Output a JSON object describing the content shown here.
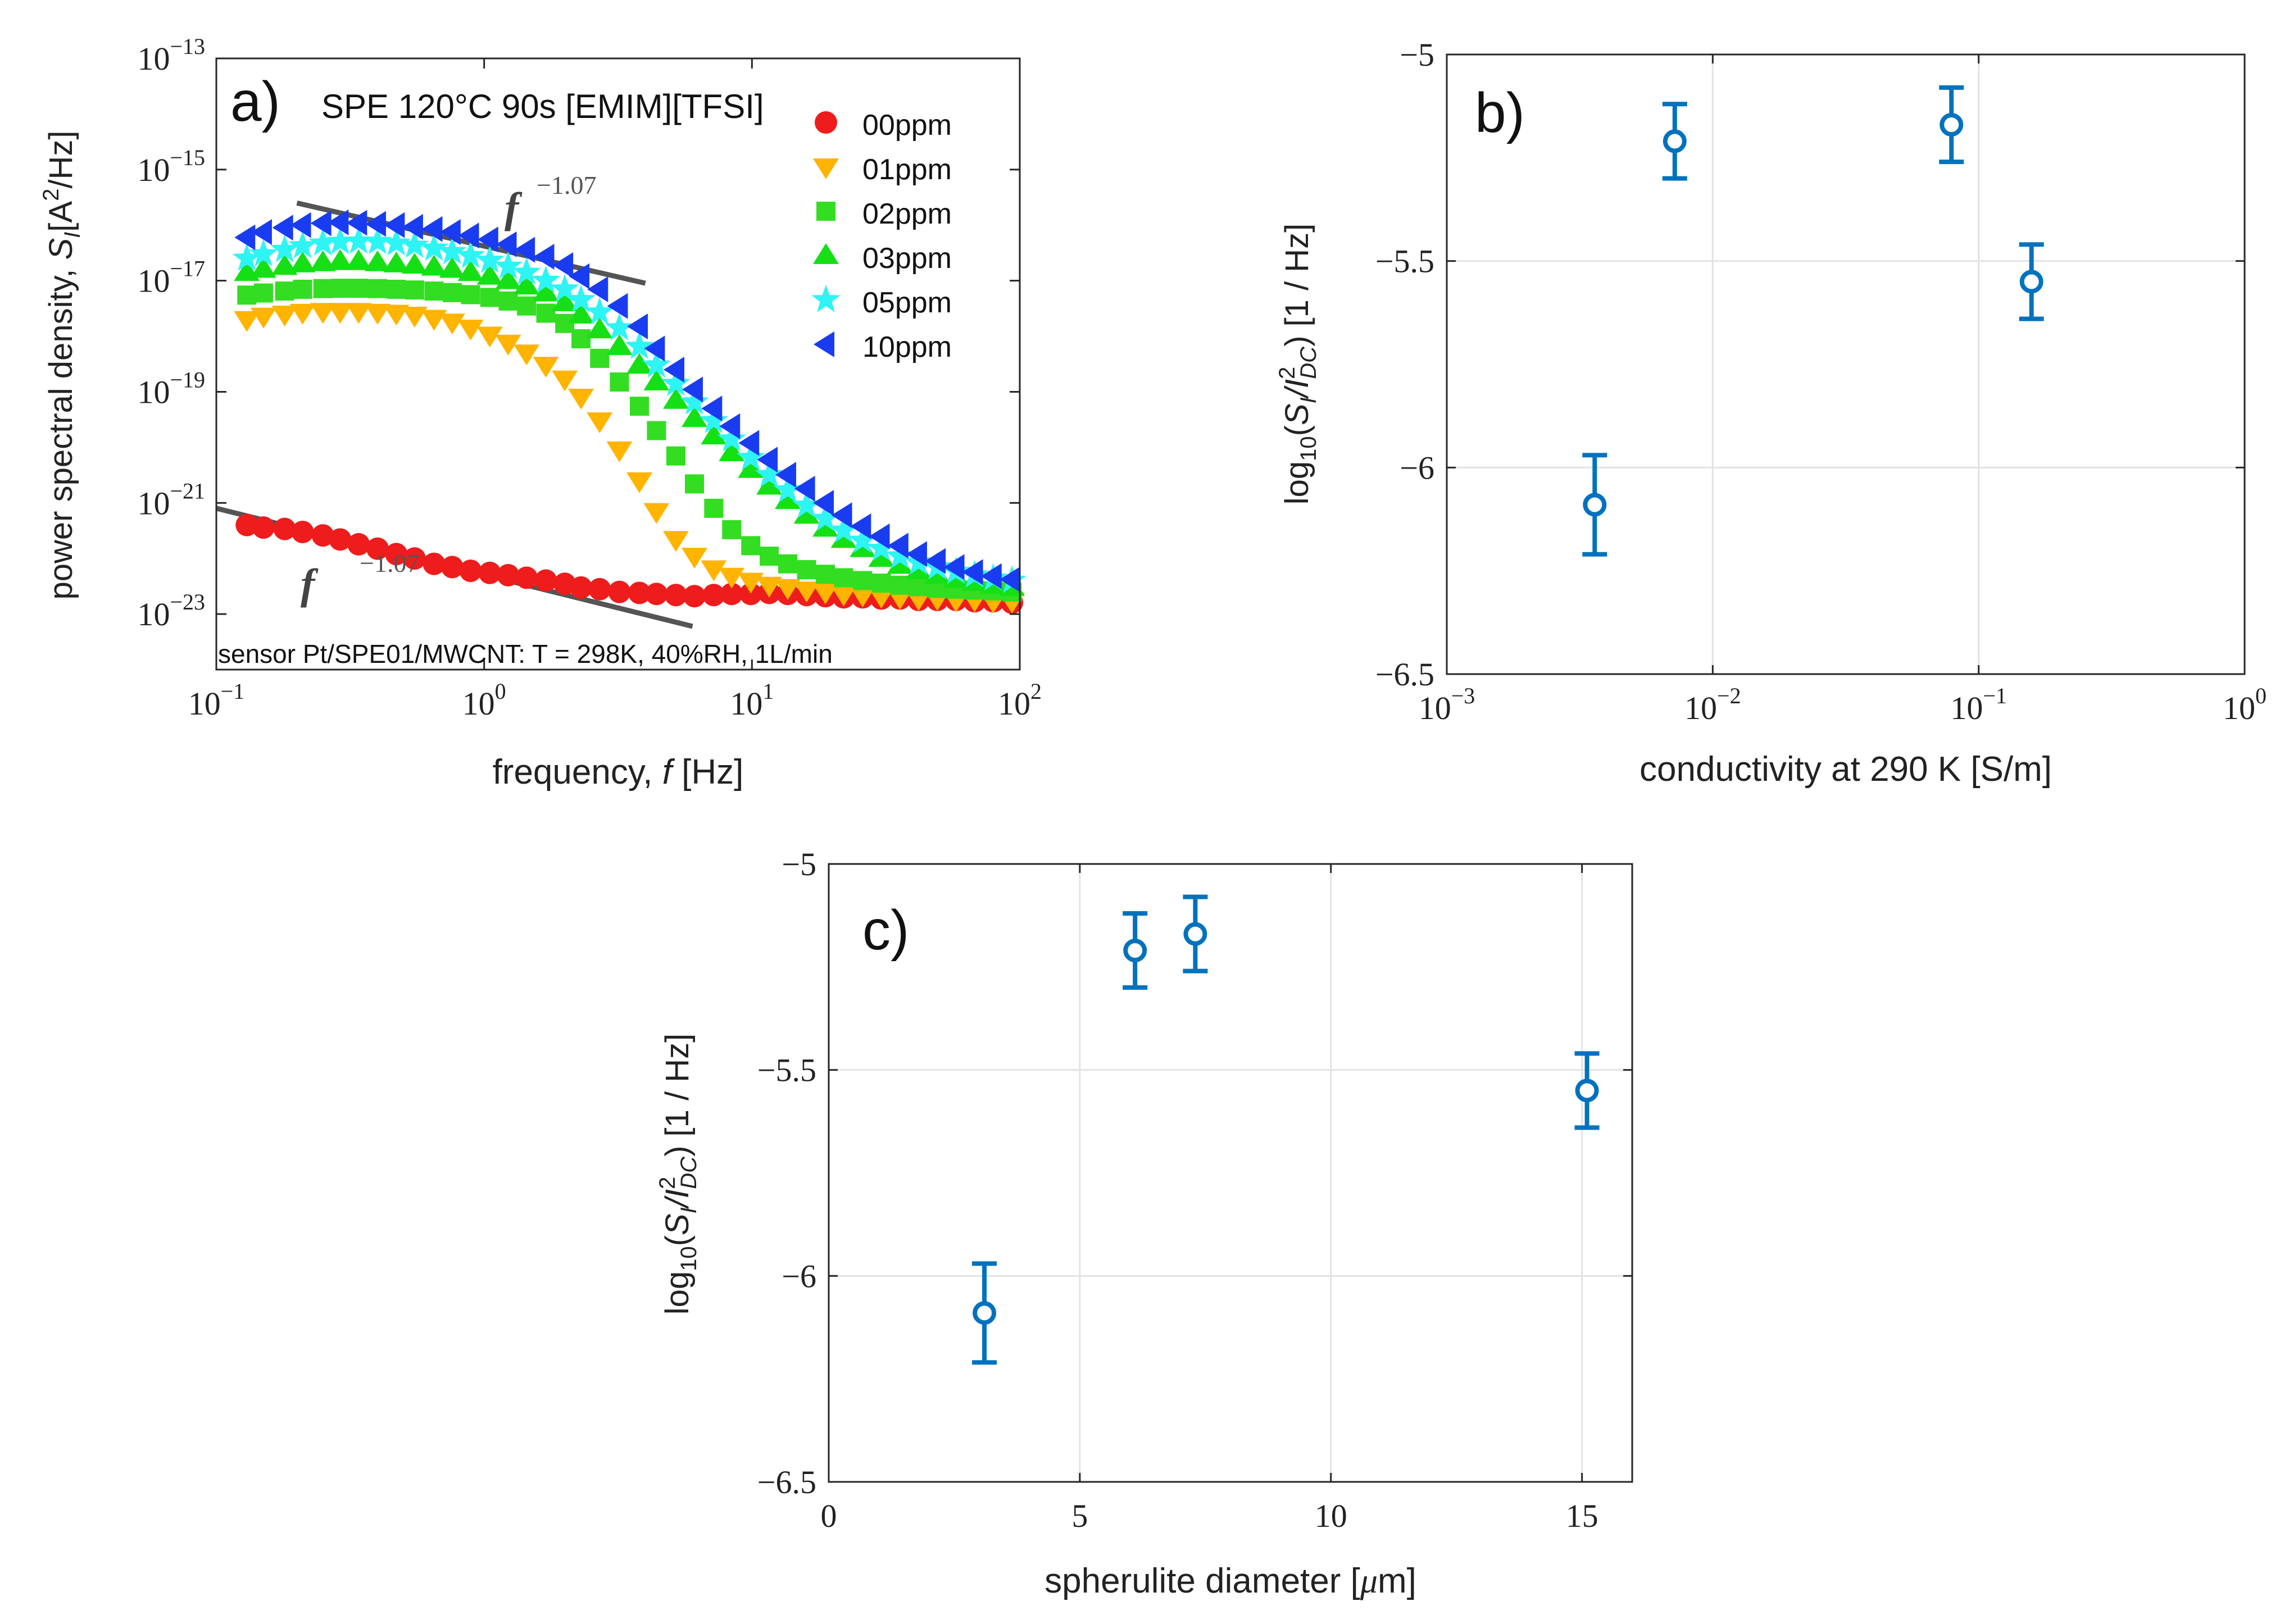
{
  "chart_data": [
    {
      "panel": "a",
      "type": "scatter",
      "panel_label": "a)",
      "title": "SPE 120°C 90s [EMIM][TFSI]",
      "annotation": "sensor Pt/SPE01/MWCNT: T = 298K, 40%RH, 1L/min",
      "xlabel": "frequency, f [Hz]",
      "ylabel": "power spectral density, S_I [A^2/Hz]",
      "xscale": "log",
      "yscale": "log",
      "xlim": [
        0.1,
        100
      ],
      "ylim": [
        1e-24,
        1e-13
      ],
      "x_ticks": [
        "10^-1",
        "10^0",
        "10^1",
        "10^2"
      ],
      "y_ticks": [
        "10^-23",
        "10^-21",
        "10^-19",
        "10^-17",
        "10^-15",
        "10^-13"
      ],
      "grid": false,
      "legend_position": "top-right",
      "fit_lines": [
        {
          "label": "f^-1.07",
          "exponent": -1.07,
          "x": [
            0.2,
            4.0
          ],
          "y": [
            2.5e-16,
            9e-18
          ]
        },
        {
          "label": "f^-1.07",
          "exponent": -1.07,
          "x": [
            0.1,
            6.0
          ],
          "y": [
            8e-22,
            6e-24
          ]
        }
      ],
      "series": [
        {
          "name": "00ppm",
          "color": "#ee1c1c",
          "marker": "circle",
          "x": [
            0.13,
            0.15,
            0.18,
            0.21,
            0.25,
            0.29,
            0.34,
            0.4,
            0.47,
            0.55,
            0.65,
            0.76,
            0.89,
            1.05,
            1.23,
            1.44,
            1.7,
            2.0,
            2.3,
            2.7,
            3.2,
            3.8,
            4.4,
            5.2,
            6.1,
            7.2,
            8.4,
            9.9,
            11.6,
            13.6,
            16,
            18.8,
            22,
            25.9,
            30.4,
            35.7,
            41.9,
            49.2,
            57.8,
            67.8,
            79.6,
            93.5
          ],
          "y": [
            4e-22,
            3.6e-22,
            3.4e-22,
            3e-22,
            2.6e-22,
            2.2e-22,
            1.8e-22,
            1.5e-22,
            1.2e-22,
            1e-22,
            8e-23,
            7e-23,
            6e-23,
            5.5e-23,
            5e-23,
            4.5e-23,
            4e-23,
            3.5e-23,
            3e-23,
            2.8e-23,
            2.5e-23,
            2.4e-23,
            2.3e-23,
            2.2e-23,
            2.1e-23,
            2.2e-23,
            2.3e-23,
            2.3e-23,
            2.4e-23,
            2.3e-23,
            2.2e-23,
            2.1e-23,
            2e-23,
            2e-23,
            1.9e-23,
            1.9e-23,
            1.8e-23,
            1.8e-23,
            1.8e-23,
            1.7e-23,
            1.7e-23,
            1.6e-23
          ]
        },
        {
          "name": "01ppm",
          "color": "#ffb400",
          "marker": "triangle-down",
          "x": [
            0.13,
            0.15,
            0.18,
            0.21,
            0.25,
            0.29,
            0.34,
            0.4,
            0.47,
            0.55,
            0.65,
            0.76,
            0.89,
            1.05,
            1.23,
            1.44,
            1.7,
            2.0,
            2.3,
            2.7,
            3.2,
            3.8,
            4.4,
            5.2,
            6.1,
            7.2,
            8.4,
            9.9,
            11.6,
            13.6,
            16,
            18.8,
            22,
            25.9,
            30.4,
            35.7,
            41.9,
            49.2,
            57.8,
            67.8,
            79.6,
            93.5
          ],
          "y": [
            2e-18,
            2.3e-18,
            2.5e-18,
            2.7e-18,
            2.8e-18,
            2.8e-18,
            2.8e-18,
            2.7e-18,
            2.6e-18,
            2.4e-18,
            2.1e-18,
            1.8e-18,
            1.4e-18,
            1.05e-18,
            7.5e-19,
            5e-19,
            3e-19,
            1.7e-19,
            8e-20,
            3e-20,
            9e-21,
            2.5e-21,
            7e-22,
            2.2e-22,
            1.1e-22,
            6.5e-23,
            4.8e-23,
            3.9e-23,
            3.3e-23,
            3e-23,
            2.7e-23,
            2.5e-23,
            2.3e-23,
            2.2e-23,
            2.1e-23,
            2e-23,
            1.9e-23,
            1.9e-23,
            1.8e-23,
            1.8e-23,
            1.7e-23,
            1.7e-23
          ]
        },
        {
          "name": "02ppm",
          "color": "#33dd22",
          "marker": "square",
          "x": [
            0.13,
            0.15,
            0.18,
            0.21,
            0.25,
            0.29,
            0.34,
            0.4,
            0.47,
            0.55,
            0.65,
            0.76,
            0.89,
            1.05,
            1.23,
            1.44,
            1.7,
            2.0,
            2.3,
            2.7,
            3.2,
            3.8,
            4.4,
            5.2,
            6.1,
            7.2,
            8.4,
            9.9,
            11.6,
            13.6,
            16,
            18.8,
            22,
            25.9,
            30.4,
            35.7,
            41.9,
            49.2,
            57.8,
            67.8,
            79.6,
            93.5
          ],
          "y": [
            5.5e-18,
            6e-18,
            6.5e-18,
            7e-18,
            7.2e-18,
            7.3e-18,
            7.3e-18,
            7.2e-18,
            7e-18,
            6.8e-18,
            6.5e-18,
            6.1e-18,
            5.6e-18,
            5e-18,
            4.3e-18,
            3.5e-18,
            2.6e-18,
            1.7e-18,
            9e-19,
            4e-19,
            1.5e-19,
            5.5e-20,
            2e-20,
            7e-21,
            2.2e-21,
            8e-22,
            3.3e-22,
            1.7e-22,
            1.1e-22,
            8e-23,
            6.3e-23,
            5.2e-23,
            4.5e-23,
            4e-23,
            3.6e-23,
            3.3e-23,
            3.1e-23,
            2.9e-23,
            2.8e-23,
            2.7e-23,
            2.6e-23,
            2.5e-23
          ]
        },
        {
          "name": "03ppm",
          "color": "#15e015",
          "marker": "triangle-up",
          "x": [
            0.13,
            0.15,
            0.18,
            0.21,
            0.25,
            0.29,
            0.34,
            0.4,
            0.47,
            0.55,
            0.65,
            0.76,
            0.89,
            1.05,
            1.23,
            1.44,
            1.7,
            2.0,
            2.3,
            2.7,
            3.2,
            3.8,
            4.4,
            5.2,
            6.1,
            7.2,
            8.4,
            9.9,
            11.6,
            13.6,
            16,
            18.8,
            22,
            25.9,
            30.4,
            35.7,
            41.9,
            49.2,
            57.8,
            67.8,
            79.6,
            93.5
          ],
          "y": [
            1.4e-17,
            1.6e-17,
            1.8e-17,
            2e-17,
            2.1e-17,
            2.2e-17,
            2.2e-17,
            2.1e-17,
            2e-17,
            1.9e-17,
            1.75e-17,
            1.6e-17,
            1.4e-17,
            1.2e-17,
            1e-17,
            8e-18,
            6e-18,
            4e-18,
            2.4e-18,
            1.3e-18,
            6.5e-19,
            3e-19,
            1.5e-19,
            7e-20,
            3.3e-20,
            1.6e-20,
            8e-21,
            4e-21,
            2e-21,
            1.1e-21,
            6e-22,
            3.5e-22,
            2.2e-22,
            1.5e-22,
            1e-22,
            7.5e-23,
            6e-23,
            5e-23,
            4.2e-23,
            3.7e-23,
            3.3e-23,
            3e-23
          ]
        },
        {
          "name": "05ppm",
          "color": "#2ff4f4",
          "marker": "star",
          "x": [
            0.13,
            0.15,
            0.18,
            0.21,
            0.25,
            0.29,
            0.34,
            0.4,
            0.47,
            0.55,
            0.65,
            0.76,
            0.89,
            1.05,
            1.23,
            1.44,
            1.7,
            2.0,
            2.3,
            2.7,
            3.2,
            3.8,
            4.4,
            5.2,
            6.1,
            7.2,
            8.4,
            9.9,
            11.6,
            13.6,
            16,
            18.8,
            22,
            25.9,
            30.4,
            35.7,
            41.9,
            49.2,
            57.8,
            67.8,
            79.6,
            93.5
          ],
          "y": [
            2.5e-17,
            3e-17,
            3.6e-17,
            4.2e-17,
            4.7e-17,
            5e-17,
            5.1e-17,
            5e-17,
            4.7e-17,
            4.3e-17,
            3.8e-17,
            3.3e-17,
            2.8e-17,
            2.3e-17,
            1.8e-17,
            1.4e-17,
            1e-17,
            7e-18,
            4.5e-18,
            2.7e-18,
            1.4e-18,
            6.5e-19,
            3e-19,
            1.4e-19,
            6.5e-20,
            3e-20,
            1.4e-20,
            6.5e-21,
            3.2e-21,
            1.7e-21,
            9e-22,
            5.2e-22,
            3.2e-22,
            2.1e-22,
            1.5e-22,
            1.1e-22,
            8.5e-23,
            7e-23,
            5.8e-23,
            5e-23,
            4.4e-23,
            4e-23
          ]
        },
        {
          "name": "10ppm",
          "color": "#1a3cf0",
          "marker": "triangle-left",
          "x": [
            0.13,
            0.15,
            0.18,
            0.21,
            0.25,
            0.29,
            0.34,
            0.4,
            0.47,
            0.55,
            0.65,
            0.76,
            0.89,
            1.05,
            1.23,
            1.44,
            1.7,
            2.0,
            2.3,
            2.7,
            3.2,
            3.8,
            4.4,
            5.2,
            6.1,
            7.2,
            8.4,
            9.9,
            11.6,
            13.6,
            16,
            18.8,
            22,
            25.9,
            30.4,
            35.7,
            41.9,
            49.2,
            57.8,
            67.8,
            79.6,
            93.5
          ],
          "y": [
            6e-17,
            7.5e-17,
            9e-17,
            1e-16,
            1.08e-16,
            1.12e-16,
            1.1e-16,
            1.05e-16,
            1e-16,
            9.3e-17,
            8.5e-17,
            7.5e-17,
            6.5e-17,
            5.5e-17,
            4.5e-17,
            3.6e-17,
            2.7e-17,
            1.9e-17,
            1.2e-17,
            7e-18,
            3.5e-18,
            1.5e-18,
            6e-19,
            2.5e-19,
            1.1e-19,
            5e-20,
            2.4e-20,
            1.2e-20,
            6e-21,
            3.2e-21,
            1.8e-21,
            1e-21,
            6e-22,
            3.8e-22,
            2.5e-22,
            1.7e-22,
            1.2e-22,
            9e-23,
            7e-23,
            5.7e-23,
            4.8e-23,
            4.2e-23
          ]
        }
      ]
    },
    {
      "panel": "b",
      "type": "scatter",
      "panel_label": "b)",
      "xlabel": "conductivity at 290 K [S/m]",
      "ylabel": "log10(S_I/I_DC^2) [1 / Hz]",
      "xscale": "log",
      "xlim": [
        0.001,
        1
      ],
      "ylim": [
        -6.5,
        -5
      ],
      "x_ticks": [
        "10^-3",
        "10^-2",
        "10^-1",
        "10^0"
      ],
      "y_ticks": [
        "-5",
        "-5.5",
        "-6",
        "-6.5"
      ],
      "grid": true,
      "color": "#0072bd",
      "marker": "open-circle",
      "points": [
        {
          "x": 0.0036,
          "y": -6.09,
          "err": 0.12
        },
        {
          "x": 0.0072,
          "y": -5.21,
          "err": 0.09
        },
        {
          "x": 0.079,
          "y": -5.17,
          "err": 0.09
        },
        {
          "x": 0.158,
          "y": -5.55,
          "err": 0.09
        }
      ]
    },
    {
      "panel": "c",
      "type": "scatter",
      "panel_label": "c)",
      "xlabel": "spherulite diameter [μm]",
      "ylabel": "log10(S_I/I_DC^2) [1 / Hz]",
      "xlim": [
        0,
        16
      ],
      "ylim": [
        -6.5,
        -5
      ],
      "x_ticks": [
        "0",
        "5",
        "10",
        "15"
      ],
      "y_ticks": [
        "-5",
        "-5.5",
        "-6",
        "-6.5"
      ],
      "grid": true,
      "color": "#0072bd",
      "marker": "open-circle",
      "points": [
        {
          "x": 3.1,
          "y": -6.09,
          "err": 0.12
        },
        {
          "x": 6.1,
          "y": -5.21,
          "err": 0.09
        },
        {
          "x": 7.3,
          "y": -5.17,
          "err": 0.09
        },
        {
          "x": 15.1,
          "y": -5.55,
          "err": 0.09
        }
      ]
    }
  ]
}
